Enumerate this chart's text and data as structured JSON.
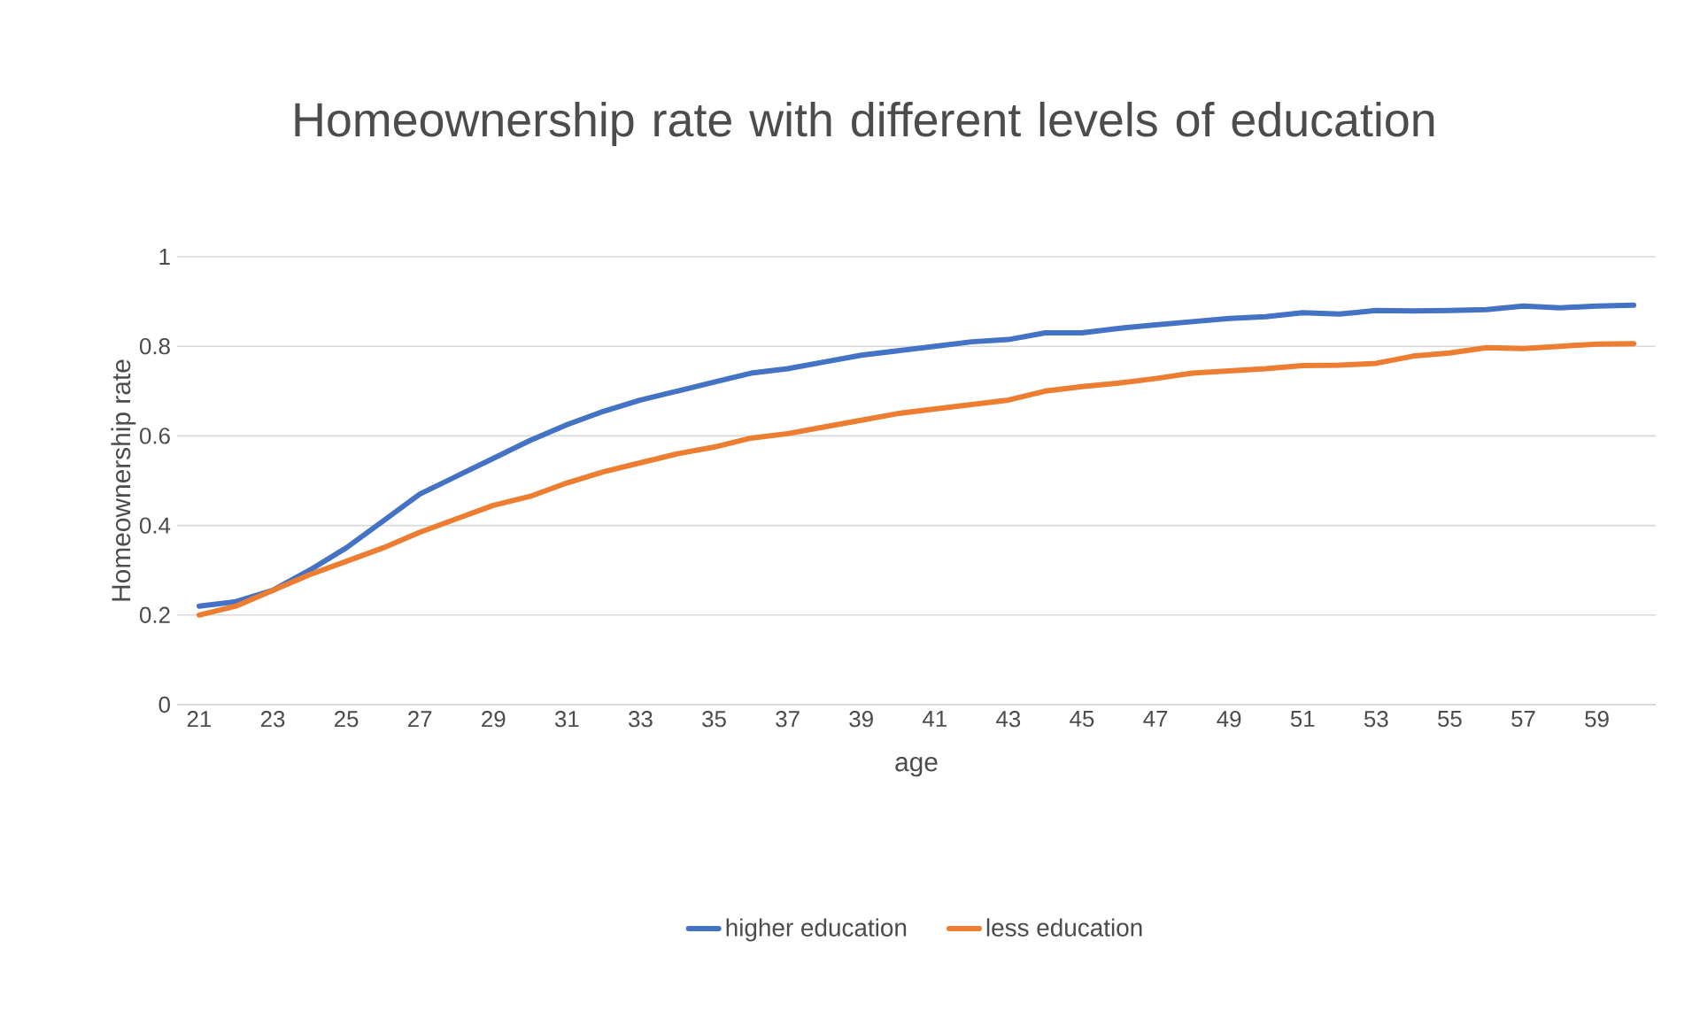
{
  "chart_data": {
    "type": "line",
    "title": "Homeownership rate with different levels of education",
    "xlabel": "age",
    "ylabel": "Homeownership rate",
    "categories": [
      "21",
      null,
      "23",
      null,
      "25",
      null,
      "27",
      null,
      "29",
      null,
      "31",
      null,
      "33",
      null,
      "35",
      null,
      "37",
      null,
      "39",
      null,
      "41",
      null,
      "43",
      null,
      "45",
      null,
      "47",
      null,
      "49",
      null,
      "51",
      null,
      "53",
      null,
      "55",
      null,
      "57",
      null,
      "59",
      null
    ],
    "series": [
      {
        "name": "higher education",
        "color": "#4472c4",
        "values": [
          0.22,
          0.23,
          0.255,
          0.3,
          0.35,
          0.41,
          0.47,
          0.51,
          0.55,
          0.59,
          0.625,
          0.655,
          0.68,
          0.7,
          0.72,
          0.74,
          0.75,
          0.765,
          0.78,
          0.79,
          0.8,
          0.81,
          0.815,
          0.83,
          0.83,
          0.84,
          0.848,
          0.855,
          0.862,
          0.866,
          0.875,
          0.872,
          0.88,
          0.879,
          0.88,
          0.882,
          0.89,
          0.886,
          0.89,
          0.892
        ]
      },
      {
        "name": "less education",
        "color": "#ed7d31",
        "values": [
          0.2,
          0.22,
          0.255,
          0.29,
          0.32,
          0.35,
          0.385,
          0.415,
          0.445,
          0.465,
          0.495,
          0.52,
          0.54,
          0.56,
          0.575,
          0.595,
          0.605,
          0.62,
          0.635,
          0.65,
          0.66,
          0.67,
          0.68,
          0.7,
          0.71,
          0.718,
          0.728,
          0.74,
          0.745,
          0.75,
          0.757,
          0.758,
          0.762,
          0.778,
          0.785,
          0.797,
          0.795,
          0.8,
          0.805,
          0.806
        ]
      }
    ],
    "ylim": [
      0,
      1
    ],
    "yticks": [
      0,
      0.2,
      0.4,
      0.6,
      0.8,
      1
    ],
    "grid": "y",
    "legend": "bottom",
    "marker": "none",
    "line_style": "solid"
  }
}
